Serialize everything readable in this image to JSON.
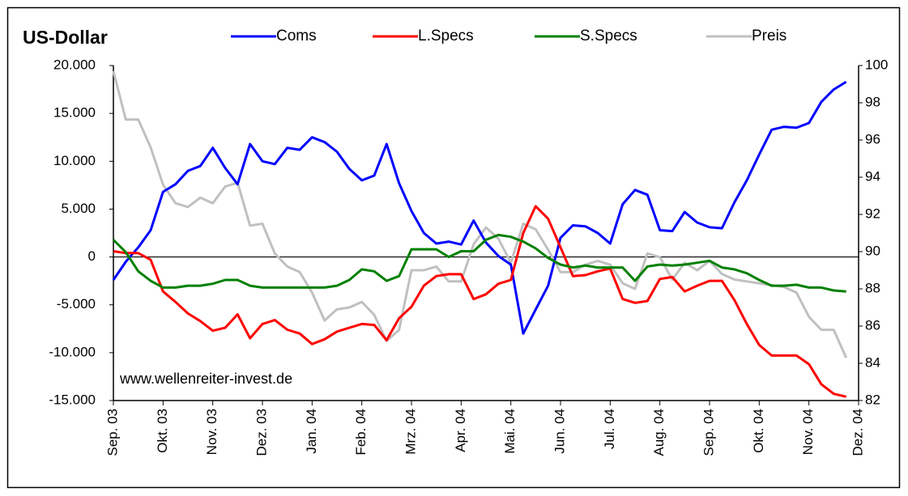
{
  "chart_data": {
    "type": "line",
    "title": "US-Dollar",
    "watermark": "www.wellenreiter-invest.de",
    "x": [
      0,
      0.25,
      0.5,
      0.75,
      1,
      1.25,
      1.5,
      1.75,
      2,
      2.25,
      2.5,
      2.75,
      3,
      3.25,
      3.5,
      3.75,
      4,
      4.25,
      4.5,
      4.75,
      5,
      5.25,
      5.5,
      5.75,
      6,
      6.25,
      6.5,
      6.75,
      7,
      7.25,
      7.5,
      7.75,
      8,
      8.25,
      8.5,
      8.75,
      9,
      9.25,
      9.5,
      9.75,
      10,
      10.25,
      10.5,
      10.75,
      11,
      11.25,
      11.5,
      11.75,
      12,
      12.25,
      12.5,
      12.75,
      13,
      13.25,
      13.5,
      13.75,
      14,
      14.25,
      14.5,
      14.75
    ],
    "xlim": [
      0,
      15
    ],
    "xticks": [
      {
        "value": 0,
        "label": "Sep. 03"
      },
      {
        "value": 1,
        "label": "Okt. 03"
      },
      {
        "value": 2,
        "label": "Nov. 03"
      },
      {
        "value": 3,
        "label": "Dez. 03"
      },
      {
        "value": 4,
        "label": "Jan. 04"
      },
      {
        "value": 5,
        "label": "Feb. 04"
      },
      {
        "value": 6,
        "label": "Mrz. 04"
      },
      {
        "value": 7,
        "label": "Apr. 04"
      },
      {
        "value": 8,
        "label": "Mai. 04"
      },
      {
        "value": 9,
        "label": "Jun. 04"
      },
      {
        "value": 10,
        "label": "Jul. 04"
      },
      {
        "value": 11,
        "label": "Aug. 04"
      },
      {
        "value": 12,
        "label": "Sep. 04"
      },
      {
        "value": 13,
        "label": "Okt. 04"
      },
      {
        "value": 14,
        "label": "Nov. 04"
      },
      {
        "value": 15,
        "label": "Dez. 04"
      }
    ],
    "ylim": [
      -15000,
      20000
    ],
    "yticks": [
      {
        "value": -15000,
        "label": "-15.000"
      },
      {
        "value": -10000,
        "label": "-10.000"
      },
      {
        "value": -5000,
        "label": "-5.000"
      },
      0,
      {
        "value": 5000,
        "label": "5.000"
      },
      {
        "value": 10000,
        "label": "10.000"
      },
      {
        "value": 15000,
        "label": "15.000"
      },
      {
        "value": 20000,
        "label": "20.000"
      }
    ],
    "y2lim": [
      82,
      100
    ],
    "y2ticks": [
      82,
      84,
      86,
      88,
      90,
      92,
      94,
      96,
      98,
      100
    ],
    "grid": false,
    "legend": "top",
    "series": [
      {
        "name": "Coms",
        "color": "#0000ff",
        "values": [
          -2400,
          -500,
          1000,
          2800,
          6800,
          7600,
          9000,
          9500,
          11400,
          9300,
          7600,
          11800,
          10000,
          9700,
          11400,
          11200,
          12500,
          12000,
          11000,
          9200,
          8000,
          8500,
          11800,
          7700,
          4800,
          2500,
          1400,
          1600,
          1300,
          3800,
          1500,
          100,
          -800,
          -8000,
          -5500,
          -3000,
          2000,
          3300,
          3200,
          2500,
          1400,
          5500,
          7000,
          6500,
          2800,
          2700,
          4700,
          3600,
          3100,
          3000,
          5700,
          8000,
          10700,
          13300,
          13600,
          13500,
          14000,
          16200,
          17500,
          18300
        ]
      },
      {
        "name": "L.Specs",
        "color": "#ff0000",
        "values": [
          600,
          400,
          400,
          -300,
          -3600,
          -4700,
          -5900,
          -6700,
          -7700,
          -7400,
          -6000,
          -8500,
          -7000,
          -6600,
          -7600,
          -8000,
          -9100,
          -8600,
          -7800,
          -7400,
          -7000,
          -7100,
          -8700,
          -6400,
          -5200,
          -3000,
          -2000,
          -1800,
          -1800,
          -4400,
          -3900,
          -2800,
          -2400,
          2500,
          5300,
          4000,
          1000,
          -2000,
          -1900,
          -1500,
          -1200,
          -4400,
          -4800,
          -4600,
          -2300,
          -2100,
          -3600,
          -3000,
          -2500,
          -2500,
          -4500,
          -7000,
          -9200,
          -10300,
          -10300,
          -10300,
          -11200,
          -13300,
          -14300,
          -14600
        ]
      },
      {
        "name": "S.Specs",
        "color": "#008000",
        "values": [
          1800,
          500,
          -1500,
          -2500,
          -3200,
          -3200,
          -3000,
          -3000,
          -2800,
          -2400,
          -2400,
          -3000,
          -3200,
          -3200,
          -3200,
          -3200,
          -3200,
          -3200,
          -3000,
          -2400,
          -1300,
          -1500,
          -2500,
          -2000,
          800,
          800,
          800,
          0,
          600,
          600,
          1800,
          2300,
          2100,
          1600,
          900,
          -100,
          -800,
          -1100,
          -900,
          -1100,
          -1100,
          -1100,
          -2500,
          -1000,
          -800,
          -900,
          -800,
          -600,
          -400,
          -1100,
          -1300,
          -1700,
          -2400,
          -3000,
          -3000,
          -2900,
          -3200,
          -3200,
          -3500,
          -3600
        ]
      },
      {
        "name": "Preis",
        "color": "#c0c0c0",
        "axis": "y2",
        "values": [
          99.7,
          97.1,
          97.1,
          95.6,
          93.6,
          92.6,
          92.4,
          92.9,
          92.6,
          93.5,
          93.7,
          91.4,
          91.5,
          89.9,
          89.2,
          88.9,
          87.8,
          86.3,
          86.9,
          87.0,
          87.3,
          86.6,
          85.2,
          85.8,
          89.0,
          89.0,
          89.2,
          88.4,
          88.4,
          90.4,
          91.3,
          90.7,
          89.4,
          91.5,
          91.2,
          90.1,
          88.9,
          88.9,
          89.3,
          89.5,
          89.3,
          88.3,
          88.0,
          89.9,
          89.7,
          88.5,
          89.4,
          89.0,
          89.5,
          88.8,
          88.5,
          88.4,
          88.3,
          88.2,
          88.1,
          87.8,
          86.5,
          85.8,
          85.8,
          84.3
        ]
      }
    ]
  }
}
